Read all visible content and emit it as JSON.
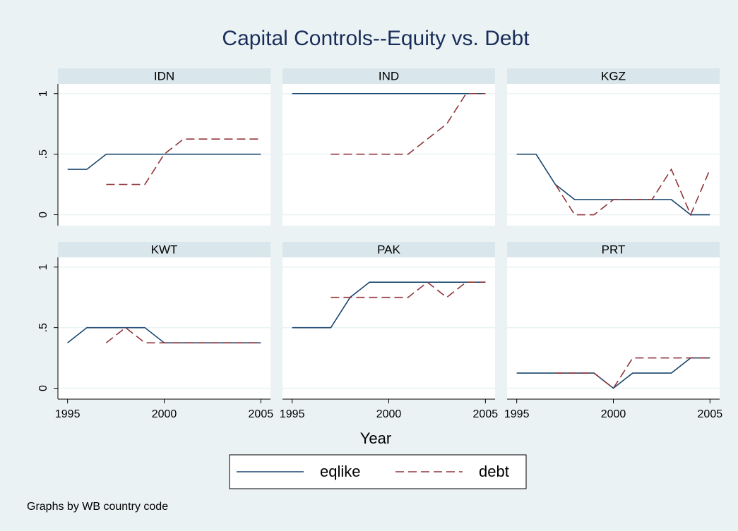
{
  "title": "Capital Controls--Equity vs. Debt",
  "x_label": "Year",
  "note": "Graphs by WB country code",
  "chart_data": [
    {
      "type": "line",
      "title": "IDN",
      "x": [
        1995,
        1996,
        1997,
        1998,
        1999,
        2000,
        2001,
        2002,
        2003,
        2004,
        2005
      ],
      "xlim": [
        1994.5,
        2005.5
      ],
      "ylim": [
        -0.09,
        1.08
      ],
      "yticks": [
        0,
        {
          "value": 0.5,
          "label": ".5"
        },
        1
      ],
      "grid": true,
      "series": [
        {
          "name": "eqlike",
          "color": "#1a476f",
          "values": [
            0.375,
            0.375,
            0.5,
            0.5,
            0.5,
            0.5,
            0.5,
            0.5,
            0.5,
            0.5,
            0.5
          ]
        },
        {
          "name": "debt",
          "color": "#90353b",
          "dashed": true,
          "values": [
            null,
            null,
            0.25,
            0.25,
            0.25,
            0.5,
            0.625,
            0.625,
            0.625,
            0.625,
            0.625
          ]
        }
      ]
    },
    {
      "type": "line",
      "title": "IND",
      "x": [
        1995,
        1996,
        1997,
        1998,
        1999,
        2000,
        2001,
        2002,
        2003,
        2004,
        2005
      ],
      "xlim": [
        1994.5,
        2005.5
      ],
      "ylim": [
        -0.09,
        1.08
      ],
      "yticks": [
        0,
        {
          "value": 0.5,
          "label": ".5"
        },
        1
      ],
      "grid": true,
      "series": [
        {
          "name": "eqlike",
          "color": "#1a476f",
          "values": [
            1,
            1,
            1,
            1,
            1,
            1,
            1,
            1,
            1,
            1,
            1
          ]
        },
        {
          "name": "debt",
          "color": "#90353b",
          "dashed": true,
          "values": [
            null,
            null,
            0.5,
            0.5,
            0.5,
            0.5,
            0.5,
            0.625,
            0.75,
            1,
            1
          ]
        }
      ]
    },
    {
      "type": "line",
      "title": "KGZ",
      "x": [
        1995,
        1996,
        1997,
        1998,
        1999,
        2000,
        2001,
        2002,
        2003,
        2004,
        2005
      ],
      "xlim": [
        1994.5,
        2005.5
      ],
      "ylim": [
        -0.09,
        1.08
      ],
      "yticks": [
        0,
        {
          "value": 0.5,
          "label": ".5"
        },
        1
      ],
      "grid": true,
      "series": [
        {
          "name": "eqlike",
          "color": "#1a476f",
          "values": [
            0.5,
            0.5,
            0.25,
            0.125,
            0.125,
            0.125,
            0.125,
            0.125,
            0.125,
            0,
            0
          ]
        },
        {
          "name": "debt",
          "color": "#90353b",
          "dashed": true,
          "values": [
            null,
            null,
            0.25,
            0,
            0,
            0.125,
            0.125,
            0.125,
            0.375,
            0,
            0.375
          ]
        }
      ]
    },
    {
      "type": "line",
      "title": "KWT",
      "x": [
        1995,
        1996,
        1997,
        1998,
        1999,
        2000,
        2001,
        2002,
        2003,
        2004,
        2005
      ],
      "xlim": [
        1994.5,
        2005.5
      ],
      "ylim": [
        -0.09,
        1.08
      ],
      "xticks": [
        1995,
        2000,
        2005
      ],
      "yticks": [
        0,
        {
          "value": 0.5,
          "label": ".5"
        },
        1
      ],
      "grid": true,
      "series": [
        {
          "name": "eqlike",
          "color": "#1a476f",
          "values": [
            0.375,
            0.5,
            0.5,
            0.5,
            0.5,
            0.375,
            0.375,
            0.375,
            0.375,
            0.375,
            0.375
          ]
        },
        {
          "name": "debt",
          "color": "#90353b",
          "dashed": true,
          "values": [
            null,
            null,
            0.375,
            0.5,
            0.375,
            0.375,
            0.375,
            0.375,
            0.375,
            0.375,
            0.375
          ]
        }
      ]
    },
    {
      "type": "line",
      "title": "PAK",
      "x": [
        1995,
        1996,
        1997,
        1998,
        1999,
        2000,
        2001,
        2002,
        2003,
        2004,
        2005
      ],
      "xlim": [
        1994.5,
        2005.5
      ],
      "ylim": [
        -0.09,
        1.08
      ],
      "xticks": [
        1995,
        2000,
        2005
      ],
      "yticks": [
        0,
        {
          "value": 0.5,
          "label": ".5"
        },
        1
      ],
      "grid": true,
      "series": [
        {
          "name": "eqlike",
          "color": "#1a476f",
          "values": [
            0.5,
            0.5,
            0.5,
            0.75,
            0.875,
            0.875,
            0.875,
            0.875,
            0.875,
            0.875,
            0.875
          ]
        },
        {
          "name": "debt",
          "color": "#90353b",
          "dashed": true,
          "values": [
            null,
            null,
            0.75,
            0.75,
            0.75,
            0.75,
            0.75,
            0.875,
            0.75,
            0.875,
            0.875
          ]
        }
      ]
    },
    {
      "type": "line",
      "title": "PRT",
      "x": [
        1995,
        1996,
        1997,
        1998,
        1999,
        2000,
        2001,
        2002,
        2003,
        2004,
        2005
      ],
      "xlim": [
        1994.5,
        2005.5
      ],
      "ylim": [
        -0.09,
        1.08
      ],
      "xticks": [
        1995,
        2000,
        2005
      ],
      "yticks": [
        0,
        {
          "value": 0.5,
          "label": ".5"
        },
        1
      ],
      "grid": true,
      "series": [
        {
          "name": "eqlike",
          "color": "#1a476f",
          "values": [
            0.125,
            0.125,
            0.125,
            0.125,
            0.125,
            0,
            0.125,
            0.125,
            0.125,
            0.25,
            0.25
          ]
        },
        {
          "name": "debt",
          "color": "#90353b",
          "dashed": true,
          "values": [
            null,
            null,
            0.125,
            0.125,
            0.125,
            0,
            0.25,
            0.25,
            0.25,
            0.25,
            0.25
          ]
        }
      ]
    }
  ]
}
